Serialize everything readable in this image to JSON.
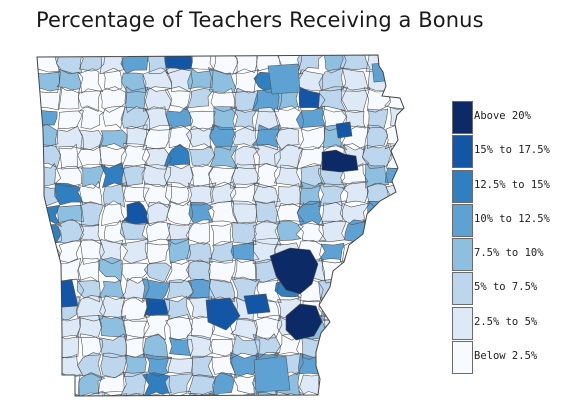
{
  "title": "Percentage of Teachers Receiving a Bonus",
  "map": {
    "region": "Arkansas school districts",
    "border_color": "#555555"
  },
  "legend": {
    "items": [
      {
        "label": "Above 20%",
        "color": "#0b2a66"
      },
      {
        "label": "15% to 17.5%",
        "color": "#1456a6"
      },
      {
        "label": "12.5% to 15%",
        "color": "#2f7fc1"
      },
      {
        "label": "10% to 12.5%",
        "color": "#5ea2d4"
      },
      {
        "label": "7.5% to 10%",
        "color": "#8dbfe1"
      },
      {
        "label": "5% to 7.5%",
        "color": "#bcd6ee"
      },
      {
        "label": "2.5% to 5%",
        "color": "#dde9f6"
      },
      {
        "label": "Below 2.5%",
        "color": "#f7fbff"
      }
    ]
  }
}
